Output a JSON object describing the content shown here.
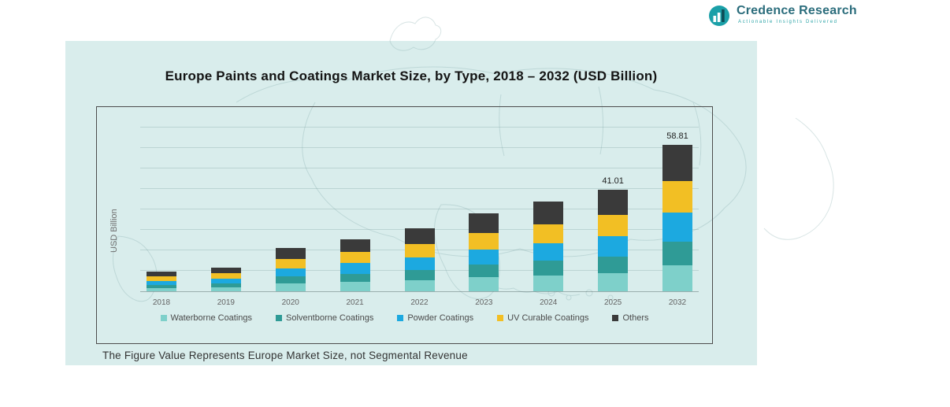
{
  "logo": {
    "name": "Credence Research",
    "tagline": "Actionable Insights Delivered"
  },
  "chart": {
    "title": "Europe Paints and Coatings Market Size, by Type, 2018 – 2032 (USD Billion)",
    "ylabel": "USD Billion",
    "footnote": "The Figure Value Represents Europe Market Size, not Segmental Revenue"
  },
  "chart_data": {
    "type": "bar",
    "stacked": true,
    "title": "Europe Paints and Coatings Market Size, by Type, 2018 – 2032 (USD Billion)",
    "xlabel": "",
    "ylabel": "USD Billion",
    "categories": [
      "2018",
      "2019",
      "2020",
      "2021",
      "2022",
      "2023",
      "2024",
      "2025",
      "2032"
    ],
    "series": [
      {
        "name": "Waterborne Coatings",
        "color": "#7ed0ca",
        "values": [
          1.42,
          1.73,
          3.11,
          3.76,
          4.54,
          5.62,
          6.48,
          7.38,
          10.59
        ]
      },
      {
        "name": "Solventborne Coatings",
        "color": "#2f9b96",
        "values": [
          1.26,
          1.54,
          2.77,
          3.34,
          4.03,
          4.99,
          5.76,
          6.56,
          9.41
        ]
      },
      {
        "name": "Powder Coatings",
        "color": "#1ca9e0",
        "values": [
          1.58,
          1.92,
          3.46,
          4.18,
          5.04,
          6.24,
          7.2,
          8.2,
          11.76
        ]
      },
      {
        "name": "UV Curable Coatings",
        "color": "#f2bf24",
        "values": [
          1.66,
          2.02,
          3.63,
          4.39,
          5.29,
          6.55,
          7.56,
          8.61,
          12.35
        ]
      },
      {
        "name": "Others",
        "color": "#3a3a3a",
        "values": [
          1.98,
          2.4,
          4.33,
          5.23,
          6.3,
          7.8,
          9.0,
          10.25,
          14.7
        ]
      }
    ],
    "estimated_totals": [
      7.9,
      9.6,
      17.3,
      20.9,
      25.2,
      31.2,
      36.0,
      41.01,
      58.81
    ],
    "bar_total_labels": [
      "",
      "",
      "",
      "",
      "",
      "",
      "",
      "41.01",
      "58.81"
    ],
    "ylim": [
      0,
      62
    ],
    "grid": "horizontal",
    "legend_position": "bottom"
  }
}
